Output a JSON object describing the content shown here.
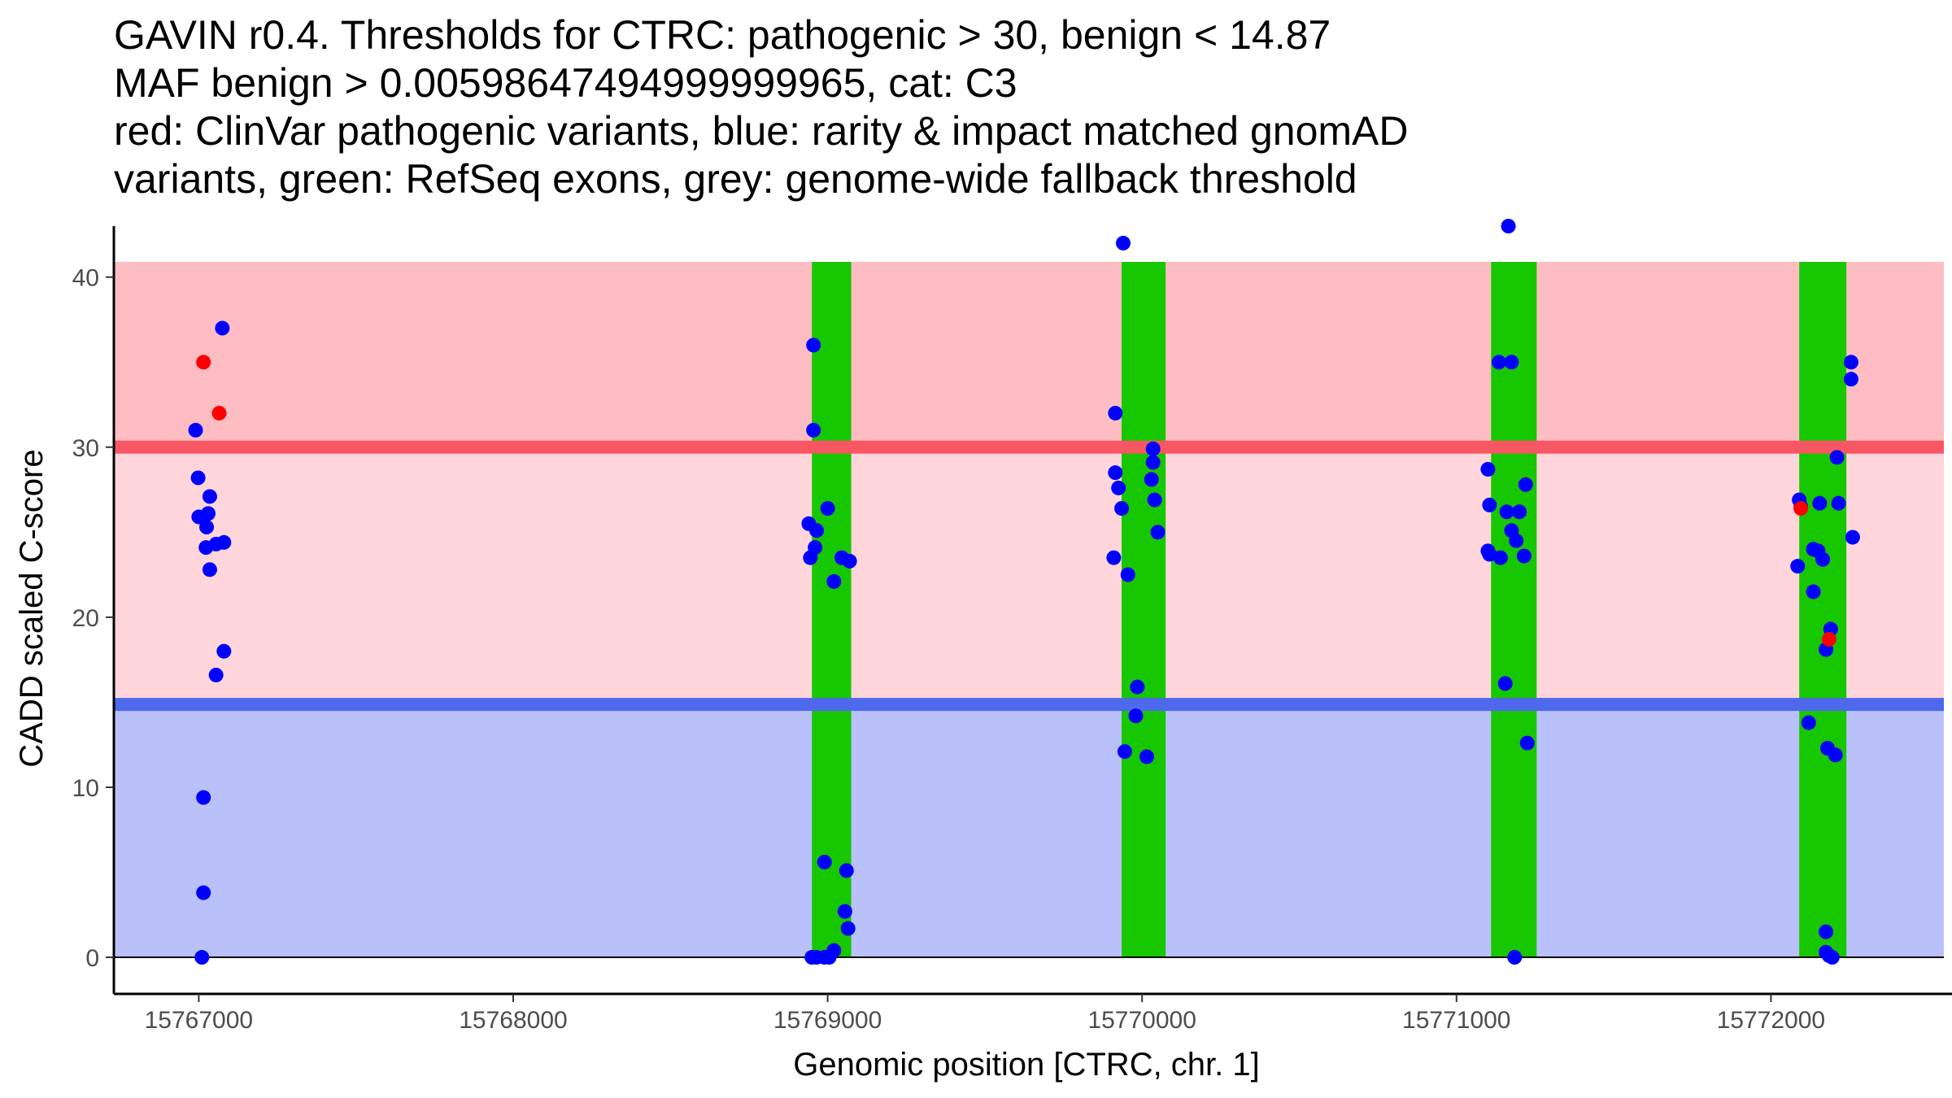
{
  "chart_data": {
    "type": "scatter",
    "title_lines": [
      "GAVIN r0.4. Thresholds for CTRC: pathogenic > 30, benign < 14.87",
      "MAF benign > 0.00598647494999999965, cat: C3",
      "red: ClinVar pathogenic variants, blue: rarity & impact matched gnomAD",
      "variants, green: RefSeq exons, grey: genome-wide fallback threshold"
    ],
    "xlabel": "Genomic position [CTRC, chr. 1]",
    "ylabel": "CADD scaled C-score",
    "xlim": [
      15766730,
      15772550
    ],
    "ylim": [
      -2.15,
      43.0
    ],
    "x_ticks": [
      15767000,
      15768000,
      15769000,
      15770000,
      15771000,
      15772000
    ],
    "x_tick_labels": [
      "15767000",
      "15768000",
      "15769000",
      "15770000",
      "15771000",
      "15772000"
    ],
    "y_ticks": [
      0,
      10,
      20,
      30,
      40
    ],
    "y_tick_labels": [
      "0",
      "10",
      "20",
      "30",
      "40"
    ],
    "thresholds": {
      "pathogenic": 30,
      "benign": 14.87
    },
    "colors": {
      "pathogenic_band": "#fed5db",
      "pathogenic_top_band": "#febdc2",
      "pathogenic_line": "#f75763",
      "benign_band": "#bac1fa",
      "benign_line": "#4e69ec",
      "exon": "#17c700",
      "clinvar": "#ff0000",
      "gnomad": "#0000ff"
    },
    "exons": [
      {
        "start": 15768950,
        "end": 15769075
      },
      {
        "start": 15769935,
        "end": 15770075
      },
      {
        "start": 15771110,
        "end": 15771255
      },
      {
        "start": 15772090,
        "end": 15772240
      }
    ],
    "series": [
      {
        "name": "ClinVar pathogenic",
        "color": "#ff0000",
        "points": [
          [
            15767015,
            35
          ],
          [
            15767065,
            32
          ],
          [
            15772095,
            26.4
          ],
          [
            15772185,
            18.7
          ]
        ]
      },
      {
        "name": "gnomAD rarity & impact matched",
        "color": "#0000ff",
        "points": [
          [
            15767075,
            37
          ],
          [
            15766990,
            31
          ],
          [
            15766998,
            28.2
          ],
          [
            15767000,
            25.9
          ],
          [
            15767035,
            27.1
          ],
          [
            15767030,
            26.1
          ],
          [
            15767025,
            25.3
          ],
          [
            15767023,
            24.1
          ],
          [
            15767055,
            24.3
          ],
          [
            15767080,
            24.4
          ],
          [
            15767035,
            22.8
          ],
          [
            15767080,
            18
          ],
          [
            15767055,
            16.6
          ],
          [
            15767015,
            9.4
          ],
          [
            15767015,
            3.8
          ],
          [
            15767010,
            0
          ],
          [
            15768955,
            36
          ],
          [
            15768955,
            31
          ],
          [
            15768940,
            25.5
          ],
          [
            15768965,
            25.1
          ],
          [
            15769000,
            26.4
          ],
          [
            15768945,
            23.5
          ],
          [
            15768960,
            24.1
          ],
          [
            15769045,
            23.5
          ],
          [
            15769070,
            23.3
          ],
          [
            15769020,
            22.1
          ],
          [
            15768990,
            5.6
          ],
          [
            15769060,
            5.1
          ],
          [
            15769055,
            2.7
          ],
          [
            15769065,
            1.7
          ],
          [
            15768950,
            0
          ],
          [
            15768965,
            0
          ],
          [
            15768990,
            0
          ],
          [
            15769005,
            0
          ],
          [
            15769020,
            0.4
          ],
          [
            15769940,
            42
          ],
          [
            15769915,
            32
          ],
          [
            15769915,
            28.5
          ],
          [
            15769925,
            27.6
          ],
          [
            15769935,
            26.4
          ],
          [
            15769910,
            23.5
          ],
          [
            15769955,
            22.5
          ],
          [
            15770035,
            29.9
          ],
          [
            15770035,
            29.1
          ],
          [
            15770030,
            28.1
          ],
          [
            15770040,
            26.9
          ],
          [
            15770050,
            25
          ],
          [
            15769985,
            15.9
          ],
          [
            15769980,
            14.2
          ],
          [
            15769945,
            12.1
          ],
          [
            15770015,
            11.8
          ],
          [
            15771165,
            43
          ],
          [
            15771135,
            35
          ],
          [
            15771175,
            35
          ],
          [
            15771100,
            28.7
          ],
          [
            15771105,
            26.6
          ],
          [
            15771160,
            26.2
          ],
          [
            15771200,
            26.2
          ],
          [
            15771220,
            27.8
          ],
          [
            15771175,
            25.1
          ],
          [
            15771190,
            24.5
          ],
          [
            15771100,
            23.9
          ],
          [
            15771105,
            23.7
          ],
          [
            15771140,
            23.5
          ],
          [
            15771215,
            23.6
          ],
          [
            15771155,
            16.1
          ],
          [
            15771225,
            12.6
          ],
          [
            15771185,
            0
          ],
          [
            15772090,
            26.9
          ],
          [
            15772095,
            26.5
          ],
          [
            15772135,
            24
          ],
          [
            15772155,
            26.7
          ],
          [
            15772150,
            23.9
          ],
          [
            15772165,
            23.4
          ],
          [
            15772085,
            23
          ],
          [
            15772135,
            21.5
          ],
          [
            15772215,
            26.7
          ],
          [
            15772210,
            29.4
          ],
          [
            15772255,
            35
          ],
          [
            15772255,
            34
          ],
          [
            15772260,
            24.7
          ],
          [
            15772190,
            19.3
          ],
          [
            15772175,
            18.1
          ],
          [
            15772120,
            13.8
          ],
          [
            15772180,
            12.3
          ],
          [
            15772205,
            11.9
          ],
          [
            15772175,
            1.5
          ],
          [
            15772175,
            0.3
          ],
          [
            15772185,
            0.1
          ],
          [
            15772195,
            0
          ]
        ]
      }
    ]
  }
}
